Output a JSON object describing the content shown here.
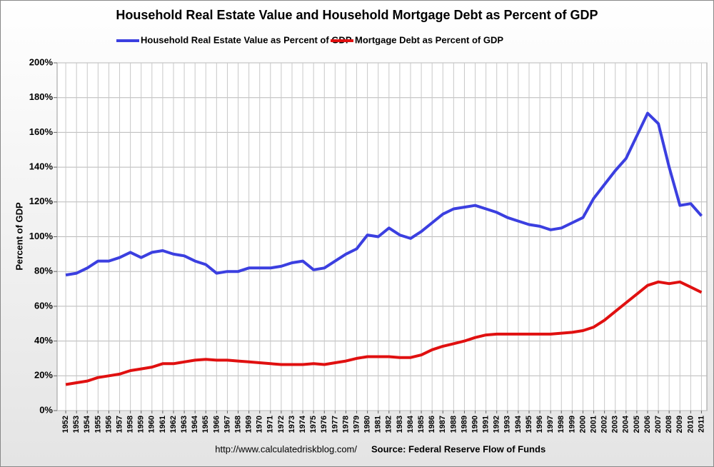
{
  "chart_data": {
    "type": "line",
    "title": "Household Real Estate Value and Household Mortgage Debt as Percent of GDP",
    "y_label": "Percent of GDP",
    "annotations": [
      "http://www.calculatedriskblog.com/",
      "Source: Federal Reserve Flow of Funds"
    ],
    "x": [
      1952,
      1953,
      1954,
      1955,
      1956,
      1957,
      1958,
      1959,
      1960,
      1961,
      1962,
      1963,
      1964,
      1965,
      1966,
      1967,
      1968,
      1969,
      1970,
      1971,
      1972,
      1973,
      1974,
      1975,
      1976,
      1977,
      1978,
      1979,
      1980,
      1981,
      1982,
      1983,
      1984,
      1985,
      1986,
      1987,
      1988,
      1989,
      1990,
      1991,
      1992,
      1993,
      1994,
      1995,
      1996,
      1997,
      1998,
      1999,
      2000,
      2001,
      2002,
      2003,
      2004,
      2005,
      2006,
      2007,
      2008,
      2009,
      2010,
      2011
    ],
    "series": [
      {
        "name": "Household Real Estate Value as Percent of GDP",
        "color": "#3b3fe0",
        "values": [
          78,
          79,
          82,
          86,
          86,
          88,
          91,
          88,
          91,
          92,
          90,
          89,
          86,
          84,
          79,
          80,
          80,
          82,
          82,
          82,
          83,
          85,
          86,
          81,
          82,
          86,
          90,
          93,
          101,
          100,
          105,
          101,
          99,
          103,
          108,
          113,
          116,
          117,
          118,
          116,
          114,
          111,
          109,
          107,
          106,
          104,
          105,
          108,
          111,
          122,
          130,
          138,
          145,
          158,
          171,
          165,
          140,
          118,
          119,
          112
        ]
      },
      {
        "name": "Mortgage Debt as Percent of GDP",
        "color": "#e01010",
        "values": [
          15,
          16,
          17,
          19,
          20,
          21,
          23,
          24,
          25,
          27,
          27,
          28,
          29,
          29.5,
          29,
          29,
          28.5,
          28,
          27.5,
          27,
          26.5,
          26.5,
          26.5,
          27,
          26.5,
          27.5,
          28.5,
          30,
          31,
          31,
          31,
          30.5,
          30.5,
          32,
          35,
          37,
          38.5,
          40,
          42,
          43.5,
          44,
          44,
          44,
          44,
          44,
          44,
          44.5,
          45,
          46,
          48,
          52,
          57,
          62,
          67,
          72,
          74,
          73,
          74,
          71,
          68
        ]
      }
    ],
    "xlim": [
      1951.2,
      2011.5
    ],
    "xticks": [
      1952,
      1953,
      1954,
      1955,
      1956,
      1957,
      1958,
      1959,
      1960,
      1961,
      1962,
      1963,
      1964,
      1965,
      1966,
      1967,
      1968,
      1969,
      1970,
      1971,
      1972,
      1973,
      1974,
      1975,
      1976,
      1977,
      1978,
      1979,
      1980,
      1981,
      1982,
      1983,
      1984,
      1985,
      1986,
      1987,
      1988,
      1989,
      1990,
      1991,
      1992,
      1993,
      1994,
      1995,
      1996,
      1997,
      1998,
      1999,
      2000,
      2001,
      2002,
      2003,
      2004,
      2005,
      2006,
      2007,
      2008,
      2009,
      2010,
      2011
    ],
    "ylim": [
      0,
      200
    ],
    "yticks": [
      {
        "value": 0,
        "label": "0%"
      },
      {
        "value": 20,
        "label": "20%"
      },
      {
        "value": 40,
        "label": "40%"
      },
      {
        "value": 60,
        "label": "60%"
      },
      {
        "value": 80,
        "label": "80%"
      },
      {
        "value": 100,
        "label": "100%"
      },
      {
        "value": 120,
        "label": "120%"
      },
      {
        "value": 140,
        "label": "140%"
      },
      {
        "value": 160,
        "label": "160%"
      },
      {
        "value": 180,
        "label": "180%"
      },
      {
        "value": 200,
        "label": "200%"
      }
    ],
    "grid": true,
    "legend": "top"
  }
}
